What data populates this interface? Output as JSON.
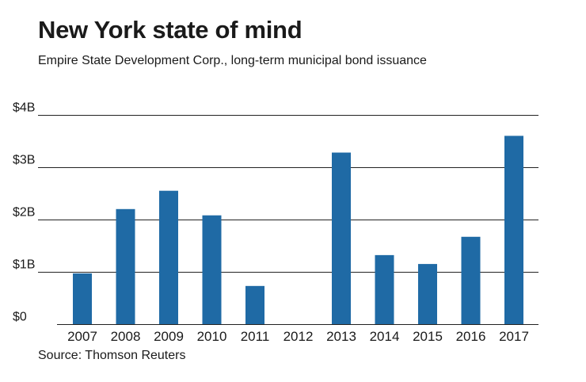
{
  "header": {
    "title": "New York state of mind",
    "subtitle": "Empire State Development Corp., long-term municipal bond issuance"
  },
  "footer": {
    "source": "Source: Thomson Reuters"
  },
  "colors": {
    "bar": "#1f6aa5",
    "grid": "#222222",
    "text": "#1a1a1a"
  },
  "chart_data": {
    "type": "bar",
    "title": "New York state of mind",
    "subtitle": "Empire State Development Corp., long-term municipal bond issuance",
    "xlabel": "",
    "ylabel": "",
    "unit": "billions of dollars",
    "categories": [
      "2007",
      "2008",
      "2009",
      "2010",
      "2011",
      "2012",
      "2013",
      "2014",
      "2015",
      "2016",
      "2017"
    ],
    "values": [
      0.97,
      2.2,
      2.55,
      2.08,
      0.73,
      0,
      3.28,
      1.32,
      1.15,
      1.67,
      3.6
    ],
    "ylim": [
      0,
      4
    ],
    "yticks": [
      0,
      1,
      2,
      3,
      4
    ],
    "ytick_labels": [
      "$0",
      "$1B",
      "$2B",
      "$3B",
      "$4B"
    ],
    "grid": true,
    "legend": "none"
  }
}
